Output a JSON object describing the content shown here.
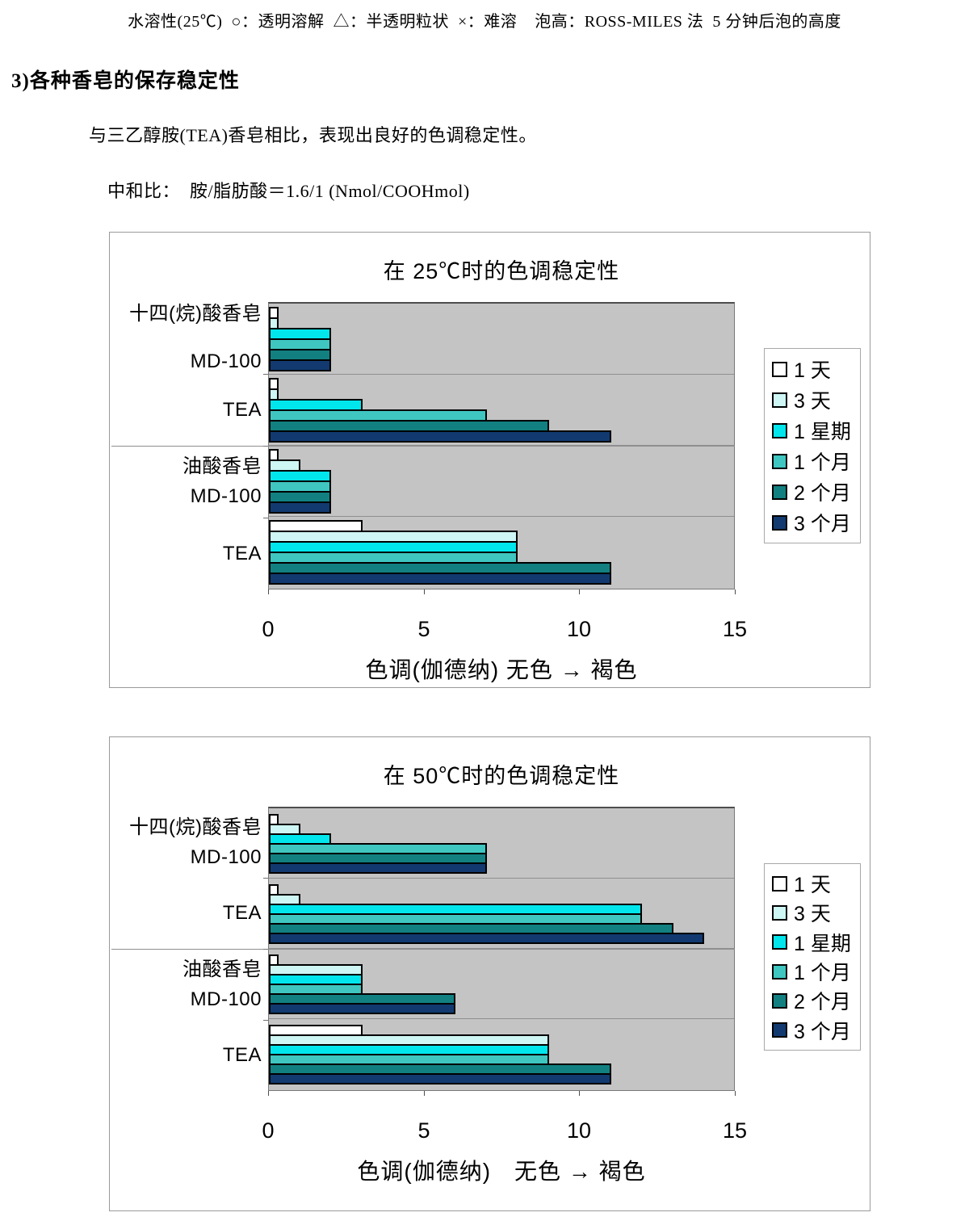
{
  "page": {
    "top_note": "水溶性(25℃)  ○：透明溶解  △：半透明粒状  ×：难溶    泡高：ROSS-MILES 法  5 分钟后泡的高度",
    "heading": "3)各种香皂的保存稳定性",
    "intro": "与三乙醇胺(TEA)香皂相比，表现出良好的色调稳定性。",
    "neutralization": "中和比：  胺/脂肪酸＝1.6/1 (Nmol/COOHmol)"
  },
  "chart_data": [
    {
      "type": "bar",
      "orientation": "horizontal",
      "title": "在 25℃时的色调稳定性",
      "xlabel": "色调(伽德纳) 无色 → 褐色",
      "xlim": [
        0,
        15
      ],
      "xticks": [
        0,
        5,
        10,
        15
      ],
      "grid": "off",
      "plot_bg": "#c4c4c4",
      "legend_position": "right",
      "categories": [
        [
          "十四(烷)酸香皂",
          "MD-100"
        ],
        [
          "TEA"
        ],
        [
          "油酸香皂",
          "MD-100"
        ],
        [
          "TEA"
        ]
      ],
      "label_layouts": [
        "spread",
        "single",
        "stack",
        "single"
      ],
      "series": [
        {
          "name": "1 天",
          "color": "#ffffff",
          "values": [
            0.3,
            0.3,
            0.3,
            3
          ]
        },
        {
          "name": "3 天",
          "color": "#cdf6f4",
          "values": [
            0.3,
            0.3,
            1,
            8
          ]
        },
        {
          "name": "1 星期",
          "color": "#00e6ec",
          "values": [
            2,
            3,
            2,
            8
          ]
        },
        {
          "name": "1 个月",
          "color": "#3fc6c0",
          "values": [
            2,
            7,
            2,
            8
          ]
        },
        {
          "name": "2 个月",
          "color": "#128081",
          "values": [
            2,
            9,
            2,
            11
          ]
        },
        {
          "name": "3 个月",
          "color": "#123a70",
          "values": [
            2,
            11,
            2,
            11
          ]
        }
      ]
    },
    {
      "type": "bar",
      "orientation": "horizontal",
      "title": "在 50℃时的色调稳定性",
      "xlabel": "色调(伽德纳)　无色 → 褐色",
      "xlim": [
        0,
        15
      ],
      "xticks": [
        0,
        5,
        10,
        15
      ],
      "grid": "off",
      "plot_bg": "#c4c4c4",
      "legend_position": "right",
      "categories": [
        [
          "十四(烷)酸香皂",
          "MD-100"
        ],
        [
          "TEA"
        ],
        [
          "油酸香皂",
          "MD-100"
        ],
        [
          "TEA"
        ]
      ],
      "label_layouts": [
        "stack",
        "single",
        "stack",
        "single"
      ],
      "series": [
        {
          "name": "1 天",
          "color": "#ffffff",
          "values": [
            0.3,
            0.3,
            0.3,
            3
          ]
        },
        {
          "name": "3 天",
          "color": "#cdf6f4",
          "values": [
            1,
            1,
            3,
            9
          ]
        },
        {
          "name": "1 星期",
          "color": "#00e6ec",
          "values": [
            2,
            12,
            3,
            9
          ]
        },
        {
          "name": "1 个月",
          "color": "#3fc6c0",
          "values": [
            7,
            12,
            3,
            9
          ]
        },
        {
          "name": "2 个月",
          "color": "#128081",
          "values": [
            7,
            13,
            6,
            11
          ]
        },
        {
          "name": "3 个月",
          "color": "#123a70",
          "values": [
            7,
            14,
            6,
            11
          ]
        }
      ]
    }
  ]
}
